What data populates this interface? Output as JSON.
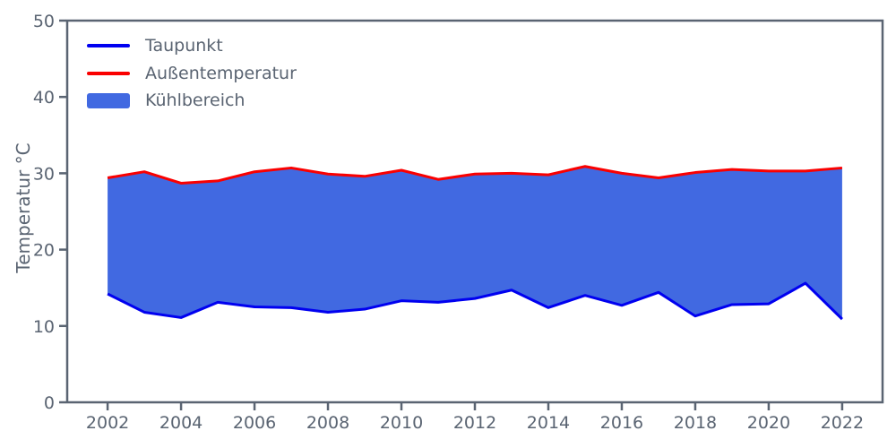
{
  "chart_data": {
    "type": "area",
    "title": "",
    "xlabel": "",
    "ylabel": "Temperatur °C",
    "x": [
      2002,
      2003,
      2004,
      2005,
      2006,
      2007,
      2008,
      2009,
      2010,
      2011,
      2012,
      2013,
      2014,
      2015,
      2016,
      2017,
      2018,
      2019,
      2020,
      2021,
      2022
    ],
    "series": [
      {
        "name": "Taupunkt",
        "color": "#0000F0",
        "values": [
          14.2,
          11.8,
          11.1,
          13.1,
          12.5,
          12.4,
          11.8,
          12.2,
          13.3,
          13.1,
          13.6,
          14.7,
          12.4,
          14.0,
          12.7,
          14.4,
          11.3,
          12.8,
          12.9,
          15.6,
          10.9
        ]
      },
      {
        "name": "Außentemperatur",
        "color": "#FA0000",
        "values": [
          29.4,
          30.2,
          28.7,
          29.0,
          30.2,
          30.7,
          29.9,
          29.6,
          30.4,
          29.2,
          29.9,
          30.0,
          29.8,
          30.9,
          30.0,
          29.4,
          30.1,
          30.5,
          30.3,
          30.3,
          30.7
        ]
      }
    ],
    "fill": {
      "name": "Kühlbereich",
      "color": "#4169E1",
      "between": [
        "Taupunkt",
        "Außentemperatur"
      ]
    },
    "xticks": [
      2002,
      2004,
      2006,
      2008,
      2010,
      2012,
      2014,
      2016,
      2018,
      2020,
      2022
    ],
    "yticks": [
      0,
      10,
      20,
      30,
      40,
      50
    ],
    "xlim": [
      2000.9,
      2023.1
    ],
    "ylim": [
      0,
      50
    ],
    "grid": false,
    "legend_position": "upper-left",
    "axis_color": "#5A6472",
    "background_color": "#FFFFFF"
  }
}
